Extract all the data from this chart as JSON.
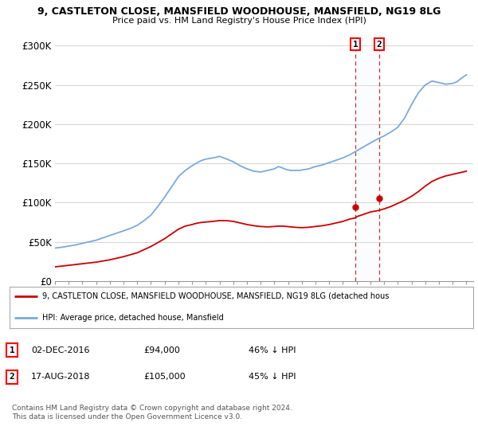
{
  "title_line1": "9, CASTLETON CLOSE, MANSFIELD WOODHOUSE, MANSFIELD, NG19 8LG",
  "title_line2": "Price paid vs. HM Land Registry's House Price Index (HPI)",
  "ylim": [
    0,
    310000
  ],
  "yticks": [
    0,
    50000,
    100000,
    150000,
    200000,
    250000,
    300000
  ],
  "ytick_labels": [
    "£0",
    "£50K",
    "£100K",
    "£150K",
    "£200K",
    "£250K",
    "£300K"
  ],
  "hpi_color": "#7aaadd",
  "price_color": "#cc0000",
  "marker_color": "#cc0000",
  "dashed_line_color": "#cc3333",
  "shade_color": "#e8f0f8",
  "legend_label_price": "9, CASTLETON CLOSE, MANSFIELD WOODHOUSE, MANSFIELD, NG19 8LG (detached hous",
  "legend_label_hpi": "HPI: Average price, detached house, Mansfield",
  "sale1_date": "02-DEC-2016",
  "sale1_price": 94000,
  "sale1_hpi": "46% ↓ HPI",
  "sale2_date": "17-AUG-2018",
  "sale2_price": 105000,
  "sale2_hpi": "45% ↓ HPI",
  "footnote": "Contains HM Land Registry data © Crown copyright and database right 2024.\nThis data is licensed under the Open Government Licence v3.0.",
  "background_color": "#ffffff",
  "grid_color": "#cccccc",
  "sale1_x": 2016.92,
  "sale2_x": 2018.63,
  "xlim_min": 1995,
  "xlim_max": 2025.5
}
